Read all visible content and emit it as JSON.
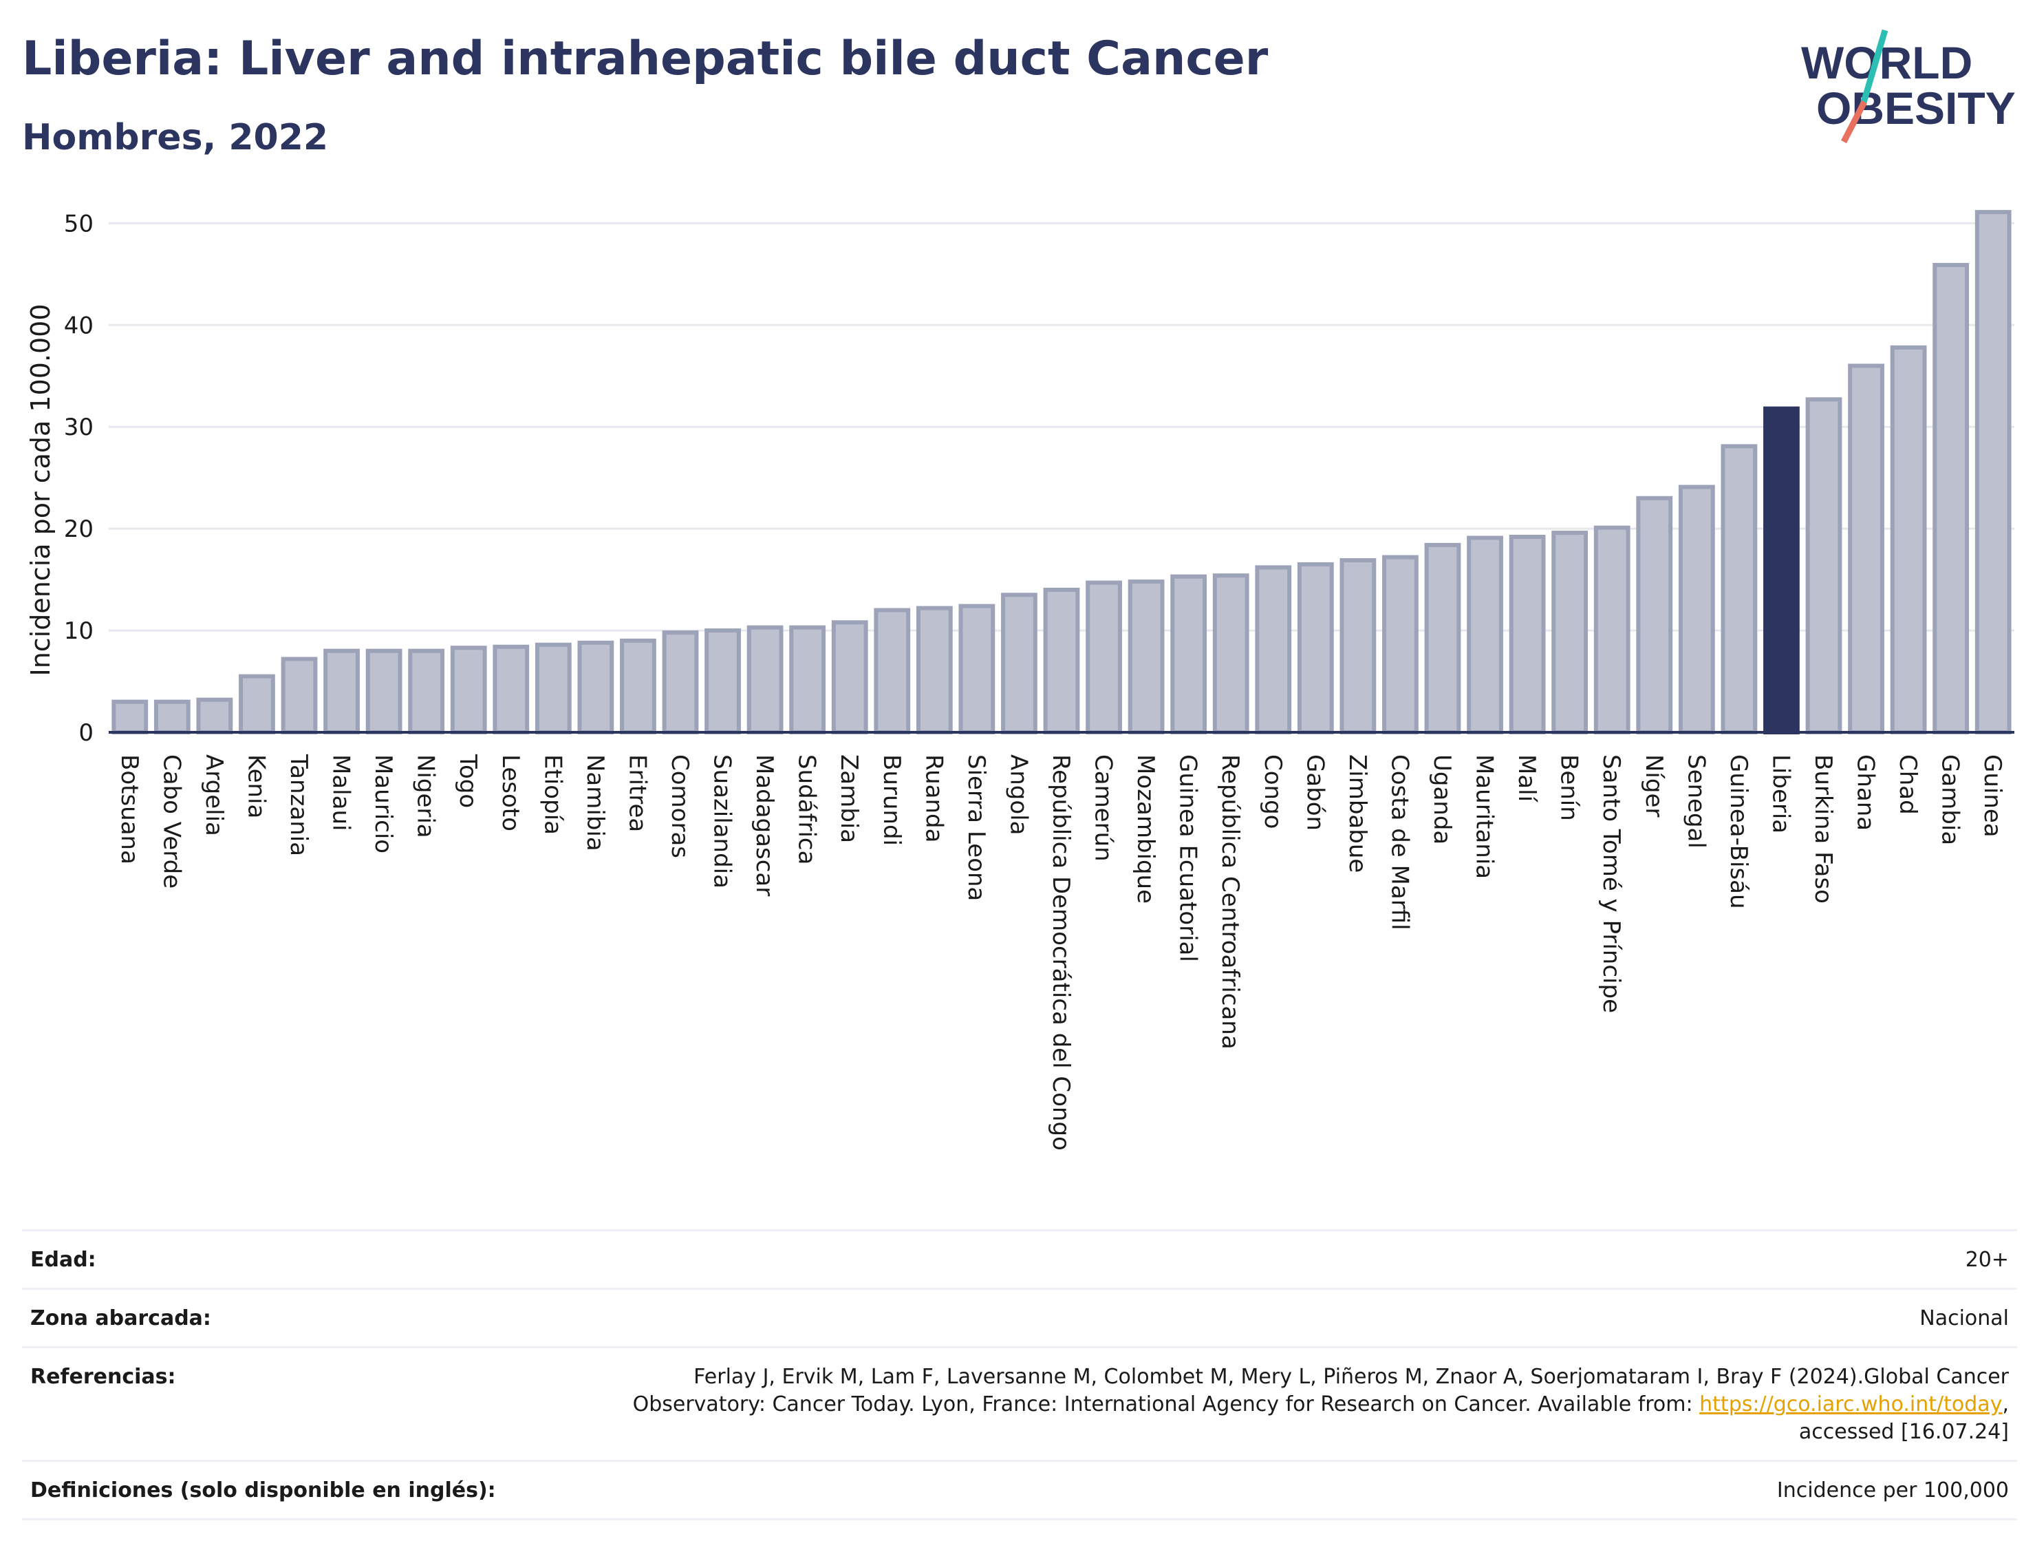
{
  "header": {
    "title": "Liberia: Liver and intrahepatic bile duct Cancer",
    "subtitle": "Hombres, 2022"
  },
  "logo": {
    "line1": "WORLD",
    "line2": "OBESITY",
    "colors": {
      "text": "#2c3560",
      "slash_top": "#2bbfb3",
      "slash_bottom": "#e8705e"
    }
  },
  "chart_data": {
    "type": "bar",
    "ylabel": "Incidencia por cada 100.000",
    "ylim": [
      0,
      53
    ],
    "yticks": [
      0,
      10,
      20,
      30,
      40,
      50
    ],
    "grid": true,
    "highlight": "Liberia",
    "colors": {
      "bar": "#bcc0cf",
      "bar_border": "#9ca2b8",
      "highlight": "#2c3560",
      "grid": "#e6e8ee"
    },
    "categories": [
      "Botsuana",
      "Cabo Verde",
      "Argelia",
      "Kenia",
      "Tanzania",
      "Malaui",
      "Mauricio",
      "Nigeria",
      "Togo",
      "Lesoto",
      "Etiopía",
      "Namibia",
      "Eritrea",
      "Comoras",
      "Suazilandia",
      "Madagascar",
      "Sudáfrica",
      "Zambia",
      "Burundi",
      "Ruanda",
      "Sierra Leona",
      "Angola",
      "República Democrática del Congo",
      "Camerún",
      "Mozambique",
      "Guinea Ecuatorial",
      "República Centroafricana",
      "Congo",
      "Gabón",
      "Zimbabue",
      "Costa de Marfil",
      "Uganda",
      "Mauritania",
      "Malí",
      "Benín",
      "Santo Tomé y Príncipe",
      "Níger",
      "Senegal",
      "Guinea-Bisáu",
      "Liberia",
      "Burkina Faso",
      "Ghana",
      "Chad",
      "Gambia",
      "Guinea"
    ],
    "values": [
      3.0,
      3.0,
      3.2,
      5.5,
      7.2,
      8.0,
      8.0,
      8.0,
      8.3,
      8.4,
      8.6,
      8.8,
      9.0,
      9.8,
      10.0,
      10.3,
      10.3,
      10.8,
      12.0,
      12.2,
      12.4,
      13.5,
      14.0,
      14.7,
      14.8,
      15.3,
      15.4,
      16.2,
      16.5,
      16.9,
      17.2,
      18.4,
      19.1,
      19.2,
      19.6,
      20.1,
      23.0,
      24.1,
      28.1,
      31.8,
      32.7,
      36.0,
      37.8,
      45.9,
      51.1
    ]
  },
  "info": {
    "age_label": "Edad:",
    "age_value": "20+",
    "coverage_label": "Zona abarcada:",
    "coverage_value": "Nacional",
    "references_label": "Referencias:",
    "references_text_1": "Ferlay J, Ervik M, Lam F, Laversanne M, Colombet M, Mery L, Piñeros M, Znaor A, Soerjomataram I, Bray F (2024).Global Cancer Observatory: Cancer Today. Lyon, France: International Agency for Research on Cancer. Available from: ",
    "references_link": "https://gco.iarc.who.int/today",
    "references_text_2": ", accessed [16.07.24]",
    "definitions_label": "Definiciones (solo disponible en inglés):",
    "definitions_value": "Incidence per 100,000"
  }
}
